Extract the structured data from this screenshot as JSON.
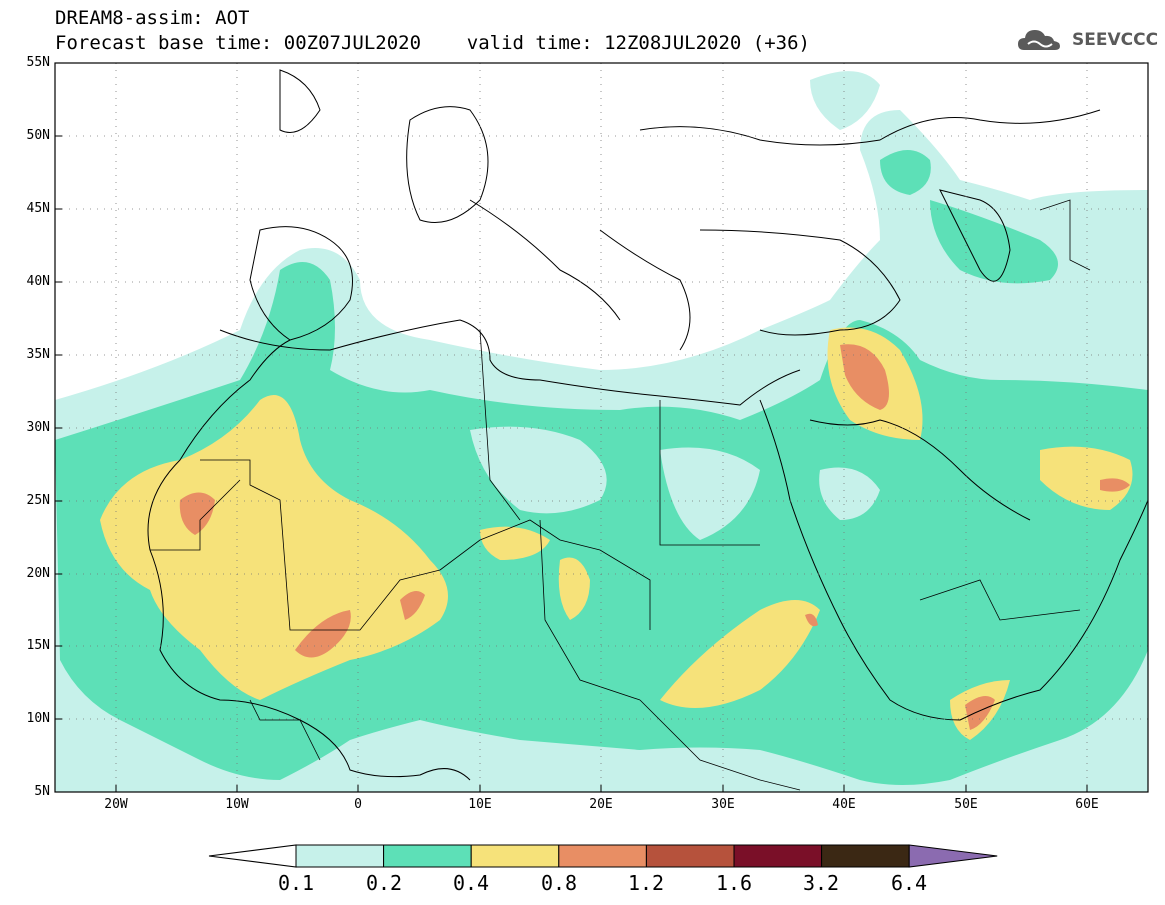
{
  "header": {
    "line1": "DREAM8-assim: AOT",
    "line2": "Forecast base time: 00Z07JUL2020    valid time: 12Z08JUL2020 (+36)"
  },
  "logo": {
    "text": "SEEVCCC",
    "icon": "cloud-icon"
  },
  "map": {
    "lat_labels": [
      "55N",
      "50N",
      "45N",
      "40N",
      "35N",
      "30N",
      "25N",
      "20N",
      "15N",
      "10N",
      "5N"
    ],
    "lon_labels": [
      "20W",
      "10W",
      "0",
      "10E",
      "20E",
      "30E",
      "40E",
      "50E",
      "60E"
    ],
    "lat_range": [
      5,
      55
    ],
    "lon_range": [
      -25,
      65
    ],
    "grid": "dotted"
  },
  "colorbar": {
    "labels": [
      "0.1",
      "0.2",
      "0.4",
      "0.8",
      "1.2",
      "1.6",
      "3.2",
      "6.4"
    ],
    "colors": [
      "#ffffff",
      "#c6f1ea",
      "#5de0b7",
      "#f6e27a",
      "#e88e64",
      "#b6523c",
      "#7a0f28",
      "#3b2814",
      "#8b6bb0"
    ]
  }
}
